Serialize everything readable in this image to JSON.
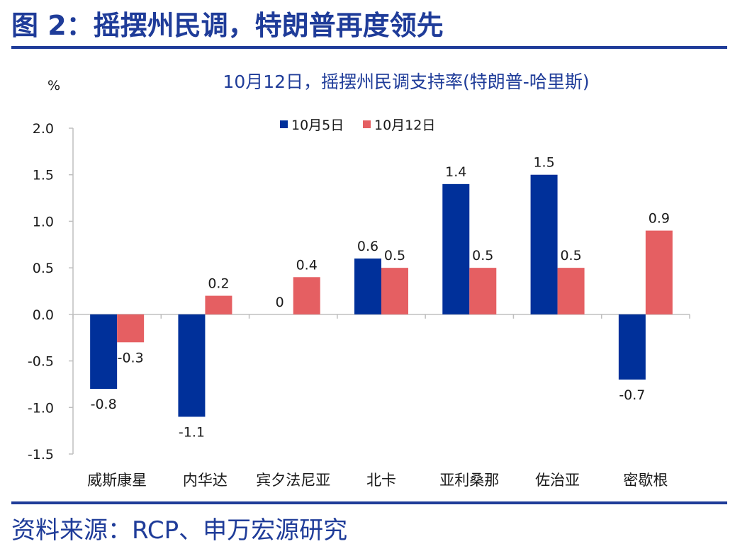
{
  "figure": {
    "title": "图 2：摇摆州民调，特朗普再度领先",
    "source": "资料来源：RCP、申万宏源研究"
  },
  "colors": {
    "header": "#1f3c99",
    "series_oct5": "#00309a",
    "series_oct12": "#e55f62",
    "axis": "#bfbfbf",
    "chart_title": "#1f3c99",
    "text": "#1a1a1a"
  },
  "chart_data": {
    "type": "bar",
    "title": "10月12日，摇摆州民调支持率(特朗普-哈里斯)",
    "ylabel": "%",
    "xlabel": "",
    "ylim": [
      -1.5,
      2.0
    ],
    "yticks": [
      "2.0",
      "1.5",
      "1.0",
      "0.5",
      "0.0",
      "-0.5",
      "-1.0",
      "-1.5"
    ],
    "ytick_values": [
      2.0,
      1.5,
      1.0,
      0.5,
      0.0,
      -0.5,
      -1.0,
      -1.5
    ],
    "legend_position": "top-center",
    "grid": false,
    "categories": [
      "威斯康星",
      "内华达",
      "宾夕法尼亚",
      "北卡",
      "亚利桑那",
      "佐治亚",
      "密歇根"
    ],
    "series": [
      {
        "name": "10月5日",
        "values": [
          -0.8,
          -1.1,
          0,
          0.6,
          1.4,
          1.5,
          -0.7
        ],
        "labels": [
          "-0.8",
          "-1.1",
          "0",
          "0.6",
          "1.4",
          "1.5",
          "-0.7"
        ]
      },
      {
        "name": "10月12日",
        "values": [
          -0.3,
          0.2,
          0.4,
          0.5,
          0.5,
          0.5,
          0.9
        ],
        "labels": [
          "-0.3",
          "0.2",
          "0.4",
          "0.5",
          "0.5",
          "0.5",
          "0.9"
        ]
      }
    ]
  }
}
